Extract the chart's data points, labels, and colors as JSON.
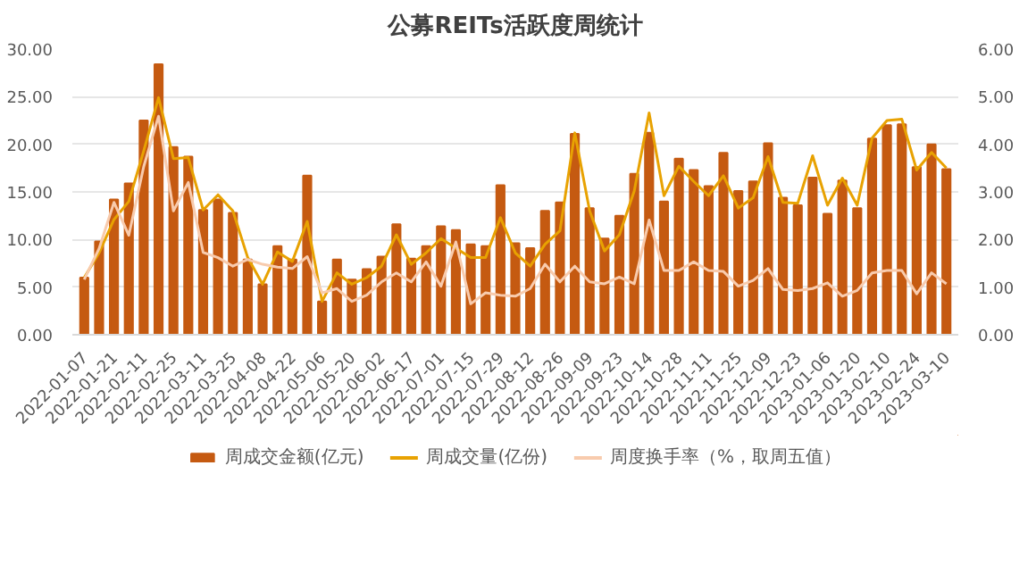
{
  "chart_data": {
    "type": "bar",
    "title": "公募REITs活跃度周统计",
    "categories": [
      "2022-01-07",
      null,
      "2022-01-21",
      null,
      "2022-02-11",
      null,
      "2022-02-25",
      null,
      "2022-03-11",
      null,
      "2022-03-25",
      null,
      "2022-04-08",
      null,
      "2022-04-22",
      null,
      "2022-05-06",
      null,
      "2022-05-20",
      null,
      "2022-06-02",
      null,
      "2022-06-17",
      null,
      "2022-07-01",
      null,
      "2022-07-15",
      null,
      "2022-07-29",
      null,
      "2022-08-12",
      null,
      "2022-08-26",
      null,
      "2022-09-09",
      null,
      "2022-09-23",
      null,
      "2022-10-14",
      null,
      "2022-10-28",
      null,
      "2022-11-11",
      null,
      "2022-11-25",
      null,
      "2022-12-09",
      null,
      "2022-12-23",
      null,
      "2023-01-06",
      null,
      "2023-01-20",
      null,
      "2023-02-10",
      null,
      "2023-02-24",
      null,
      "2023-03-10"
    ],
    "series": [
      {
        "name": "周成交金额(亿元)",
        "color": "#c55a11",
        "values": [
          6.0,
          9.8,
          14.2,
          15.9,
          22.5,
          28.4,
          19.7,
          18.7,
          13.1,
          14.2,
          12.8,
          7.9,
          5.3,
          9.3,
          7.9,
          16.7,
          3.5,
          7.9,
          5.8,
          6.9,
          8.2,
          11.6,
          8.0,
          9.3,
          11.4,
          11.0,
          9.5,
          9.3,
          15.7,
          9.6,
          9.1,
          13.0,
          13.9,
          21.1,
          13.3,
          10.1,
          12.5,
          16.9,
          21.2,
          14.0,
          18.5,
          17.3,
          15.6,
          19.1,
          15.1,
          16.1,
          20.1,
          14.4,
          13.6,
          16.5,
          12.7,
          16.2,
          13.3,
          20.6,
          22.0,
          22.1,
          17.6,
          20.0,
          17.4
        ]
      },
      {
        "name": "周成交量(亿份)",
        "type": "line",
        "axis": "y2",
        "color": "#e8a202",
        "values": [
          1.2,
          1.72,
          2.42,
          2.8,
          3.86,
          4.98,
          3.7,
          3.72,
          2.62,
          2.94,
          2.6,
          1.62,
          1.06,
          1.74,
          1.54,
          2.38,
          0.7,
          1.3,
          1.06,
          1.2,
          1.44,
          2.1,
          1.48,
          1.72,
          2.02,
          1.82,
          1.62,
          1.62,
          2.46,
          1.72,
          1.44,
          1.9,
          2.18,
          4.24,
          2.6,
          1.76,
          2.1,
          3.02,
          4.66,
          2.92,
          3.54,
          3.22,
          2.92,
          3.34,
          2.66,
          2.88,
          3.74,
          2.78,
          2.76,
          3.76,
          2.72,
          3.29,
          2.72,
          4.13,
          4.5,
          4.53,
          3.46,
          3.83,
          3.5
        ]
      },
      {
        "name": "周度换手率（%，取周五值）",
        "type": "line",
        "axis": "y2",
        "color": "#f8cbad",
        "values": [
          1.16,
          1.81,
          2.78,
          2.09,
          3.53,
          4.59,
          2.6,
          3.2,
          1.73,
          1.62,
          1.44,
          1.58,
          1.48,
          1.42,
          1.39,
          1.64,
          0.88,
          0.97,
          0.7,
          0.83,
          1.11,
          1.3,
          1.11,
          1.53,
          1.02,
          1.95,
          0.65,
          0.88,
          0.83,
          0.81,
          0.97,
          1.48,
          1.11,
          1.44,
          1.11,
          1.07,
          1.21,
          1.07,
          2.41,
          1.35,
          1.35,
          1.53,
          1.35,
          1.33,
          1.02,
          1.14,
          1.39,
          0.95,
          0.93,
          0.97,
          1.09,
          0.81,
          0.93,
          1.3,
          1.35,
          1.35,
          0.86,
          1.3,
          1.07
        ]
      }
    ],
    "ylim": [
      0,
      30
    ],
    "yticks": [
      {
        "value": 0,
        "label": "0.00"
      },
      {
        "value": 5,
        "label": "5.00"
      },
      {
        "value": 10,
        "label": "10.00"
      },
      {
        "value": 15,
        "label": "15.00"
      },
      {
        "value": 20,
        "label": "20.00"
      },
      {
        "value": 25,
        "label": "25.00"
      },
      {
        "value": 30,
        "label": "30.00"
      }
    ],
    "y2lim": [
      0,
      6
    ],
    "y2ticks": [
      {
        "value": 0,
        "label": "0.00"
      },
      {
        "value": 1,
        "label": "1.00"
      },
      {
        "value": 2,
        "label": "2.00"
      },
      {
        "value": 3,
        "label": "3.00"
      },
      {
        "value": 4,
        "label": "4.00"
      },
      {
        "value": 5,
        "label": "5.00"
      },
      {
        "value": 6,
        "label": "6.00"
      }
    ],
    "grid": "y",
    "legend": "bottom"
  }
}
